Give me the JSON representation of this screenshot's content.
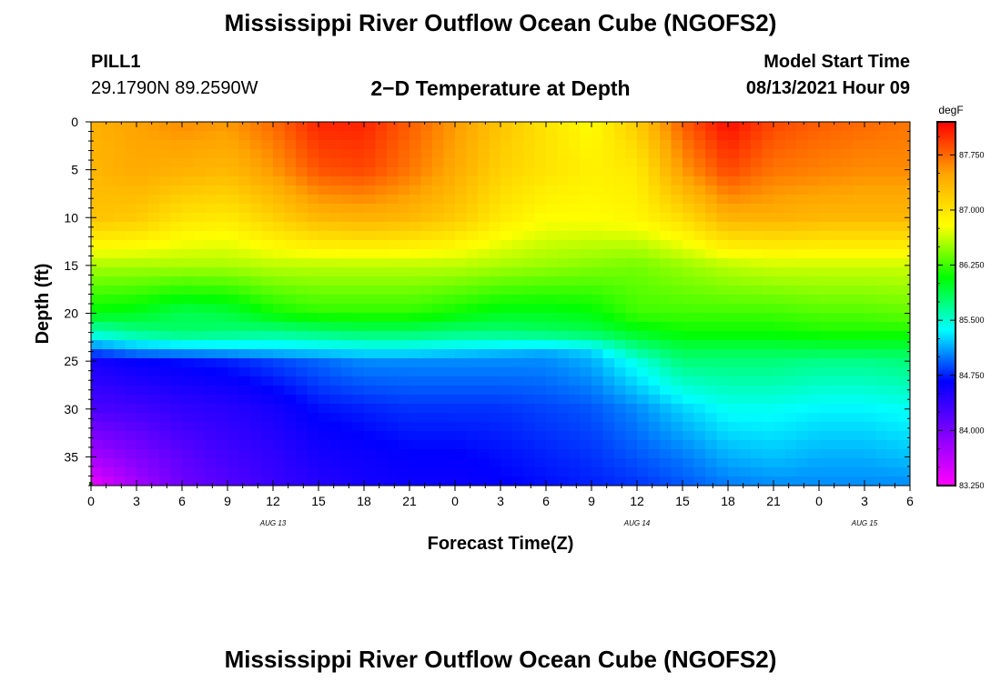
{
  "page": {
    "title_top": "Mississippi River Outflow Ocean Cube (NGOFS2)",
    "title_bottom": "Mississippi River Outflow Ocean Cube (NGOFS2)",
    "station": {
      "name": "PILL1",
      "coords": "29.1790N  89.2590W"
    },
    "model_start": {
      "label": "Model Start Time",
      "value": "08/13/2021 Hour 09"
    }
  },
  "chart_data": {
    "type": "heatmap",
    "title": "2−D Temperature at Depth",
    "xlabel": "Forecast Time(Z)",
    "ylabel": "Depth (ft)",
    "x_tick_labels": [
      "0",
      "3",
      "6",
      "9",
      "12",
      "15",
      "18",
      "21",
      "0",
      "3",
      "6",
      "9",
      "12",
      "15",
      "18",
      "21",
      "0",
      "3",
      "6"
    ],
    "x_range_hours": [
      0,
      54
    ],
    "date_labels": [
      {
        "text": "AUG 13",
        "hour": 12
      },
      {
        "text": "AUG 14",
        "hour": 36
      },
      {
        "text": "AUG 15",
        "hour": 51
      }
    ],
    "y_ticks": [
      0,
      5,
      10,
      15,
      20,
      25,
      30,
      35
    ],
    "ylim": [
      0,
      38
    ],
    "y_inverted": true,
    "colorbar": {
      "unit": "degF",
      "tick_labels": [
        "87.750",
        "87.000",
        "86.250",
        "85.500",
        "84.750",
        "84.000",
        "83.250"
      ],
      "ticks": [
        87.75,
        87.0,
        86.25,
        85.5,
        84.75,
        84.0,
        83.25
      ],
      "range": [
        83.25,
        88.2
      ],
      "colors": [
        "#ff00ff",
        "#8000ff",
        "#0000ff",
        "#00ffff",
        "#00ff00",
        "#ffff00",
        "#ffa500",
        "#ff0000"
      ]
    },
    "grid_times_hours": [
      0,
      3,
      6,
      9,
      12,
      15,
      18,
      21,
      24,
      27,
      30,
      33,
      36,
      39,
      42,
      45,
      48,
      51,
      54
    ],
    "grid_depths_ft": [
      0,
      5,
      10,
      15,
      20,
      22,
      24,
      25,
      30,
      35,
      38
    ],
    "temperature_degF": [
      [
        87.4,
        87.5,
        87.6,
        87.55,
        87.75,
        88.05,
        88.05,
        87.8,
        87.55,
        87.25,
        87.0,
        86.8,
        87.2,
        87.8,
        88.15,
        87.9,
        87.8,
        87.75,
        87.7
      ],
      [
        87.35,
        87.45,
        87.4,
        87.35,
        87.55,
        87.85,
        87.9,
        87.7,
        87.45,
        87.15,
        87.0,
        86.9,
        86.95,
        87.55,
        87.9,
        87.7,
        87.65,
        87.6,
        87.6
      ],
      [
        87.25,
        87.2,
        87.0,
        86.95,
        87.15,
        87.35,
        87.4,
        87.35,
        87.2,
        86.95,
        86.8,
        86.8,
        86.85,
        87.05,
        87.4,
        87.4,
        87.35,
        87.35,
        87.35
      ],
      [
        86.55,
        86.55,
        86.55,
        86.55,
        86.6,
        86.6,
        86.6,
        86.6,
        86.6,
        86.55,
        86.5,
        86.45,
        86.4,
        86.5,
        86.6,
        86.65,
        86.65,
        86.65,
        86.65
      ],
      [
        86.05,
        86.0,
        85.85,
        85.9,
        86.1,
        86.2,
        86.2,
        86.2,
        86.1,
        86.0,
        86.0,
        86.05,
        86.25,
        86.25,
        86.25,
        86.25,
        86.3,
        86.3,
        86.35
      ],
      [
        85.55,
        85.7,
        85.8,
        85.75,
        85.7,
        85.75,
        85.8,
        85.8,
        85.75,
        85.75,
        85.8,
        85.85,
        86.0,
        86.1,
        86.1,
        86.1,
        86.15,
        86.15,
        86.15
      ],
      [
        84.9,
        85.05,
        85.1,
        85.15,
        85.2,
        85.25,
        85.3,
        85.3,
        85.25,
        85.2,
        85.15,
        85.25,
        85.65,
        85.85,
        85.85,
        85.85,
        85.85,
        85.85,
        85.85
      ],
      [
        84.55,
        84.65,
        84.7,
        84.75,
        84.85,
        84.95,
        85.05,
        85.05,
        85.05,
        85.05,
        85.05,
        85.15,
        85.45,
        85.75,
        85.75,
        85.75,
        85.7,
        85.7,
        85.75
      ],
      [
        84.25,
        84.3,
        84.4,
        84.45,
        84.55,
        84.7,
        84.75,
        84.8,
        84.8,
        84.8,
        84.85,
        84.9,
        85.05,
        85.25,
        85.4,
        85.4,
        85.35,
        85.35,
        85.4
      ],
      [
        83.75,
        83.95,
        84.15,
        84.3,
        84.4,
        84.55,
        84.6,
        84.65,
        84.65,
        84.7,
        84.75,
        84.8,
        84.9,
        85.0,
        85.15,
        85.2,
        85.15,
        85.15,
        85.2
      ],
      [
        83.35,
        83.75,
        84.05,
        84.2,
        84.35,
        84.45,
        84.55,
        84.6,
        84.6,
        84.65,
        84.7,
        84.75,
        84.8,
        84.9,
        85.0,
        85.05,
        85.05,
        85.05,
        85.05
      ]
    ]
  }
}
